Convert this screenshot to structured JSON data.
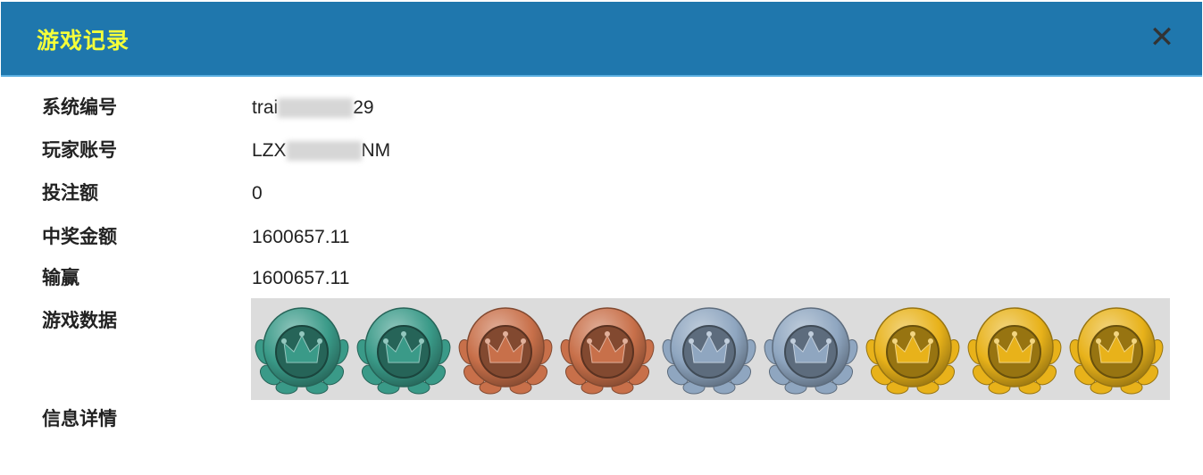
{
  "dialog": {
    "title": "游戏记录",
    "close_icon": "close-icon"
  },
  "fields": [
    {
      "label": "系统编号",
      "value_prefix": "trai",
      "value_suffix": "29",
      "redacted": true
    },
    {
      "label": "玩家账号",
      "value_prefix": "LZX",
      "value_suffix": "NM",
      "redacted": true
    },
    {
      "label": "投注额",
      "value": "0"
    },
    {
      "label": "中奖金额",
      "value": "1600657.11"
    },
    {
      "label": "输赢",
      "value": "1600657.11"
    },
    {
      "label": "游戏数据"
    },
    {
      "label": "信息详情"
    }
  ],
  "game_data": {
    "medals": [
      "teal",
      "teal",
      "bronze",
      "bronze",
      "silver",
      "silver",
      "gold",
      "gold",
      "gold"
    ],
    "colors": {
      "teal": "#3a9a88",
      "bronze": "#c8704a",
      "silver": "#8fa6c0",
      "gold": "#e8b21a",
      "strip_bg": "#dcdcdc",
      "header": "#1f77ad",
      "title": "#f4ff3a"
    }
  }
}
